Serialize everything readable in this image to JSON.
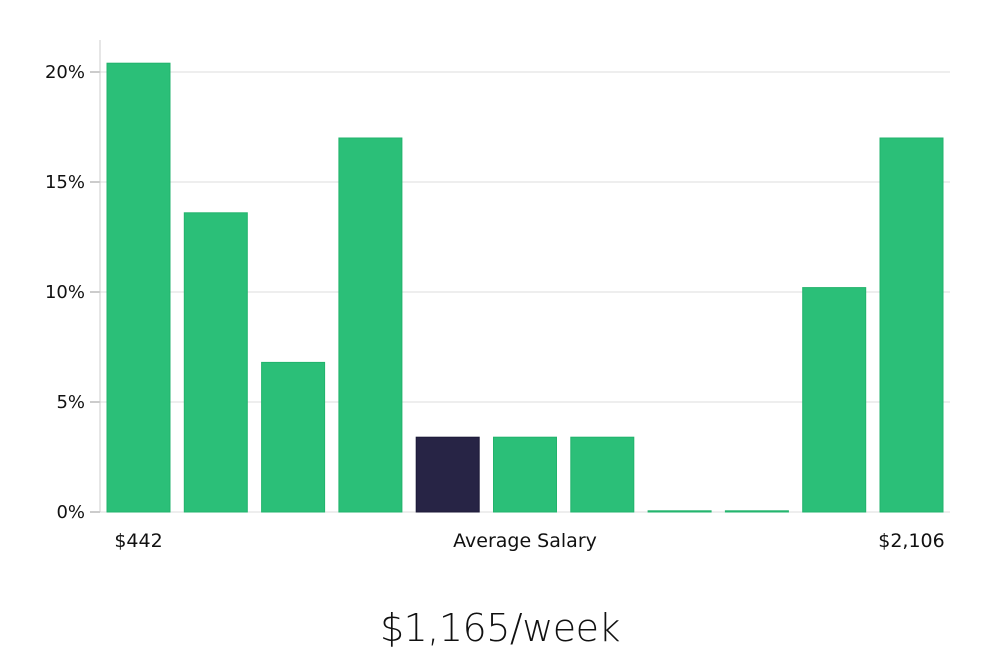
{
  "chart_data": {
    "type": "bar",
    "title": "",
    "xlabel": "",
    "ylabel": "",
    "ylim": [
      0,
      21.5
    ],
    "y_ticks": [
      0,
      5,
      10,
      15,
      20
    ],
    "y_tick_labels": [
      "0%",
      "5%",
      "10%",
      "15%",
      "20%"
    ],
    "grid": true,
    "values": [
      20.4,
      13.6,
      6.8,
      17.0,
      3.4,
      3.4,
      3.4,
      0.05,
      0.05,
      10.2,
      17.0
    ],
    "highlight_index": 4,
    "x_labels": {
      "left": "$442",
      "center": "Average Salary",
      "right": "$2,106"
    },
    "colors": {
      "bar": "#2bbf78",
      "bar_stroke": "#22b36c",
      "highlight": "#272445",
      "grid": "#dddddd",
      "axis": "#cccccc"
    }
  },
  "headline": "$1,165/week"
}
